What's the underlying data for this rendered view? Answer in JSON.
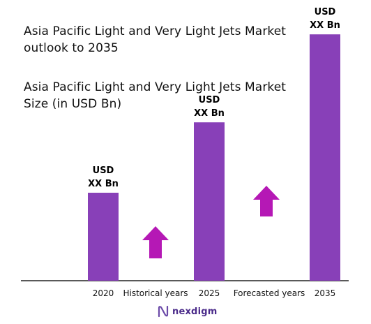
{
  "header": {
    "title": "Asia Pacific Light and Very Light Jets Market outlook to 2035",
    "subtitle": "Asia Pacific Light and Very Light Jets Market Size (in USD Bn)"
  },
  "chart_data": {
    "type": "bar",
    "categories": [
      "2020",
      "2025",
      "2035"
    ],
    "values": [
      1.0,
      1.8,
      2.8
    ],
    "data_labels": [
      [
        "USD",
        "XX Bn"
      ],
      [
        "USD",
        "XX Bn"
      ],
      [
        "USD",
        "XX Bn"
      ]
    ],
    "segments": [
      "Historical years",
      "Forecasted years"
    ],
    "ylim": [
      0,
      3.0
    ],
    "grid": false,
    "legend": "none",
    "colors": {
      "bar": "#8840b8",
      "arrow": "#b518b5",
      "axis": "#222222"
    }
  },
  "brand": {
    "name": "nexdigm",
    "icon": "nexdigm-logo-icon",
    "color": "#4a2a8a"
  }
}
